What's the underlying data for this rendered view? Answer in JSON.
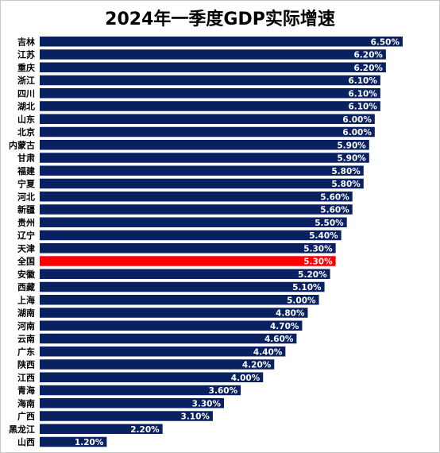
{
  "chart_data": {
    "type": "bar",
    "orientation": "horizontal",
    "title": "2024年一季度GDP实际增速",
    "categories": [
      "吉林",
      "江苏",
      "重庆",
      "浙江",
      "四川",
      "湖北",
      "山东",
      "北京",
      "内蒙古",
      "甘肃",
      "福建",
      "宁夏",
      "河北",
      "新疆",
      "贵州",
      "辽宁",
      "天津",
      "全国",
      "安徽",
      "西藏",
      "上海",
      "湖南",
      "河南",
      "云南",
      "广东",
      "陕西",
      "江西",
      "青海",
      "海南",
      "广西",
      "黑龙江",
      "山西"
    ],
    "values": [
      6.5,
      6.2,
      6.2,
      6.1,
      6.1,
      6.1,
      6.0,
      6.0,
      5.9,
      5.9,
      5.8,
      5.8,
      5.6,
      5.6,
      5.5,
      5.4,
      5.3,
      5.3,
      5.2,
      5.1,
      5.0,
      4.8,
      4.7,
      4.6,
      4.4,
      4.2,
      4.0,
      3.6,
      3.3,
      3.1,
      2.2,
      1.2
    ],
    "value_labels": [
      "6.50%",
      "6.20%",
      "6.20%",
      "6.10%",
      "6.10%",
      "6.10%",
      "6.00%",
      "6.00%",
      "5.90%",
      "5.90%",
      "5.80%",
      "5.80%",
      "5.60%",
      "5.60%",
      "5.50%",
      "5.40%",
      "5.30%",
      "5.30%",
      "5.20%",
      "5.10%",
      "5.00%",
      "4.80%",
      "4.70%",
      "4.60%",
      "4.40%",
      "4.20%",
      "4.00%",
      "3.60%",
      "3.30%",
      "3.10%",
      "2.20%",
      "1.20%"
    ],
    "unit": "%",
    "xlim": [
      0,
      6.5
    ],
    "grid": false,
    "legend": "none",
    "colors": {
      "default": "#0a2161",
      "highlight": "#ff0000"
    },
    "highlight_category": "全国"
  }
}
